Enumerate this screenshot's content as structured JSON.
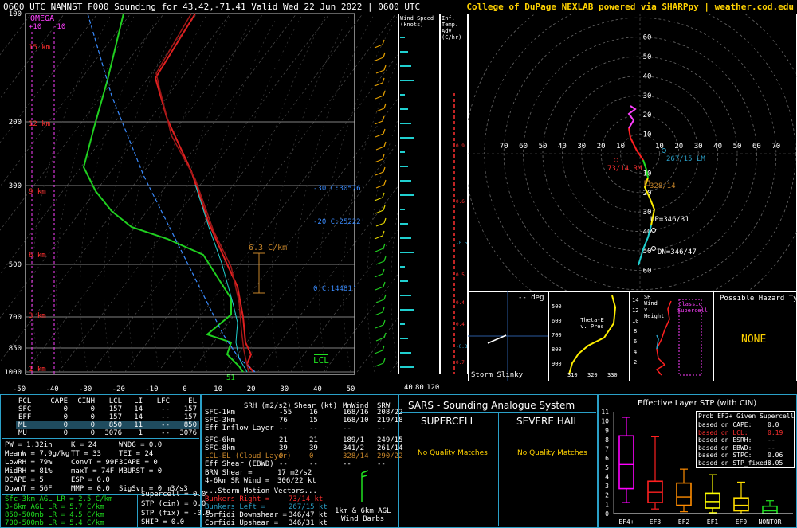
{
  "title": "0600 UTC NAMNST F000 Sounding for 43.42,-71.41 Valid  Wed 22 Jun 2022 | 0600 UTC",
  "credit": "College of DuPage NEXLAB powered via SHARPpy | weather.cod.edu",
  "skewt": {
    "omega_label": "OMEGA",
    "omega_ticks": [
      "+10",
      "-10"
    ],
    "pressure_ticks": [
      "100",
      "200",
      "300",
      "500",
      "700",
      "850",
      "1000"
    ],
    "temp_ticks": [
      "-50",
      "-40",
      "-30",
      "-20",
      "-10",
      "0",
      "10",
      "20",
      "30",
      "40",
      "50"
    ],
    "height_labels": [
      "15 km",
      "12 km",
      "9 km",
      "6 km",
      "3 km",
      "1 km"
    ],
    "isotherm_labels": [
      "-30 C:30576'",
      "-20 C:25222'",
      "0 C:14481'"
    ],
    "lapse_label": "6.3 C/km",
    "lcl_label": "LCL",
    "sfc_temp": "51"
  },
  "hodograph": {
    "rings": [
      "10",
      "20",
      "30",
      "40",
      "50",
      "60",
      "70"
    ],
    "labels": {
      "rm": "73/14 RM",
      "lm": "267/15 LM",
      "mean": "328/14",
      "up": "UP=346/31",
      "dn": "DN=346/47"
    }
  },
  "side": {
    "wind_speed_title": "Wind Speed (knots)",
    "temp_adv_title": "Inf. Temp. Adv (C/hr)",
    "adv_values": [
      "0.9",
      "0.6",
      "-0.5",
      "0.5",
      "0.4",
      "0.4",
      "-0.3",
      "0.7"
    ],
    "speed_axis": [
      "40",
      "80",
      "120"
    ]
  },
  "mini": {
    "storm_slinky_label": "Storm Slinky",
    "deg_label": "-- deg",
    "theta_title": "Theta-E v. Pres",
    "theta_y": [
      "500",
      "600",
      "700",
      "800",
      "900"
    ],
    "theta_x": [
      "310",
      "320",
      "330"
    ],
    "srw_title": "SR Wind v. Height",
    "srw_label": "Classic Supercell",
    "srw_y": [
      "14",
      "12",
      "10",
      "8",
      "6",
      "4",
      "2"
    ],
    "hazard_title": "Possible Hazard Type",
    "hazard_value": "NONE"
  },
  "parcels": {
    "headers": [
      "PCL",
      "CAPE",
      "CINH",
      "LCL",
      "LI",
      "LFC",
      "EL"
    ],
    "rows": [
      [
        "SFC",
        "0",
        "0",
        "157",
        "14",
        "--",
        "157"
      ],
      [
        "EFF",
        "0",
        "0",
        "157",
        "14",
        "--",
        "157"
      ],
      [
        "ML",
        "0",
        "0",
        "850",
        "11",
        "--",
        "850"
      ],
      [
        "MU",
        "0",
        "0",
        "3076",
        "1",
        "--",
        "3076"
      ]
    ]
  },
  "indices": [
    [
      "PW = 1.32in",
      "K = 24",
      "WNDG = 0.0"
    ],
    [
      "MeanW = 7.9g/kg",
      "TT = 33",
      "TEI = 24"
    ],
    [
      "LowRH = 79%",
      "ConvT = 99F",
      "3CAPE = 0"
    ],
    [
      "MidRH = 81%",
      "maxT = 74F",
      "MBURST = 0"
    ],
    [
      "DCAPE = 5",
      "ESP = 0.0",
      ""
    ],
    [
      "DownT = 56F",
      "MMP = 0.0",
      "SigSvr = 0 m3/s3"
    ]
  ],
  "lapse_rates": [
    "Sfc-3km AGL LR = 2.5 C/km",
    "3-6km AGL LR = 5.7 C/km",
    "850-500mb LR = 4.5 C/km",
    "700-500mb LR = 5.4 C/km"
  ],
  "composite": [
    "Supercell = 0.0",
    "STP (cin) = 0.0",
    "STP (fix) = -0.0",
    "SHIP = 0.0"
  ],
  "kinematics": {
    "headers": [
      "SRH (m2/s2)",
      "Shear (kt)",
      "MnWind",
      "SRW"
    ],
    "rows": [
      [
        "SFC-1km",
        "-55",
        "16",
        "168/16",
        "208/22"
      ],
      [
        "SFC-3km",
        "76",
        "15",
        "168/10",
        "219/18"
      ],
      [
        "Eff Inflow Layer",
        "--",
        "--",
        "--",
        "--"
      ],
      [
        "",
        "",
        " ",
        "",
        ""
      ],
      [
        "SFC-6km",
        "21",
        "21",
        "189/1",
        "249/15"
      ],
      [
        "SFC-8km",
        "39",
        "39",
        "341/2",
        "261/14"
      ],
      [
        "LCL-EL (Cloud Layer)",
        "0",
        "0",
        "328/14",
        "290/22"
      ],
      [
        "Eff Shear (EBWD)",
        "--",
        "--",
        "--",
        "--"
      ]
    ],
    "brn_shear": "BRN Shear =",
    "brn_value": "17 m2/s2",
    "srwind": "4-6km SR Wind =",
    "srwind_value": "306/22 kt",
    "storm_motion": "...Storm Motion Vectors...",
    "bunkers_right": "Bunkers Right =",
    "bunkers_right_value": "73/14 kt",
    "bunkers_left": "Bunkers Left =",
    "bunkers_left_value": "267/15 kt",
    "corfidi_down": "Corfidi Downshear =",
    "corfidi_down_value": "346/47 kt",
    "corfidi_up": "Corfidi Upshear =",
    "corfidi_up_value": "346/31 kt",
    "barb_note1": "1km & 6km AGL",
    "barb_note2": "Wind Barbs"
  },
  "sars": {
    "title": "SARS - Sounding Analogue System",
    "supercell": "SUPERCELL",
    "hail": "SEVERE HAIL",
    "supercell_result": "No Quality Matches",
    "hail_result": "No Quality Matches"
  },
  "stp": {
    "title": "Effective Layer STP (with CIN)",
    "prob_title": "Prob EF2+ Given Supercell",
    "prob_rows": [
      [
        "based on CAPE:",
        "0.0"
      ],
      [
        "based on LCL:",
        "0.19"
      ],
      [
        "based on ESRH:",
        "--"
      ],
      [
        "based on EBWD:",
        "--"
      ],
      [
        "based on STPC:",
        "0.06"
      ],
      [
        "based on STP_fixed:",
        "0.05"
      ]
    ],
    "y_ticks": [
      "11",
      "10",
      "9",
      "8",
      "7",
      "6",
      "5",
      "4",
      "3",
      "2",
      "1",
      "0"
    ]
  },
  "chart_data": {
    "type": "box",
    "title": "Effective Layer STP (with CIN)",
    "categories": [
      "EF4+",
      "EF3",
      "EF2",
      "EF1",
      "EF0",
      "NONTOR"
    ],
    "colors": [
      "#ff00ff",
      "#ff2020",
      "#ff8c00",
      "#ffff00",
      "#ffdd00",
      "#20e020"
    ],
    "boxes": [
      {
        "whisker_low": 1.2,
        "q1": 2.7,
        "median": 5.3,
        "q3": 8.4,
        "whisker_high": 10.4
      },
      {
        "whisker_low": 0.5,
        "q1": 1.2,
        "median": 2.3,
        "q3": 3.5,
        "whisker_high": 8.3
      },
      {
        "whisker_low": 0.2,
        "q1": 0.9,
        "median": 1.8,
        "q3": 3.3,
        "whisker_high": 4.8
      },
      {
        "whisker_low": 0.1,
        "q1": 0.6,
        "median": 1.3,
        "q3": 2.2,
        "whisker_high": 4.2
      },
      {
        "whisker_low": 0.0,
        "q1": 0.3,
        "median": 0.9,
        "q3": 1.7,
        "whisker_high": 3.4
      },
      {
        "whisker_low": 0.0,
        "q1": 0.0,
        "median": 0.3,
        "q3": 0.8,
        "whisker_high": 1.4
      }
    ],
    "ylim": [
      0,
      11
    ],
    "current_value": 0.0
  }
}
